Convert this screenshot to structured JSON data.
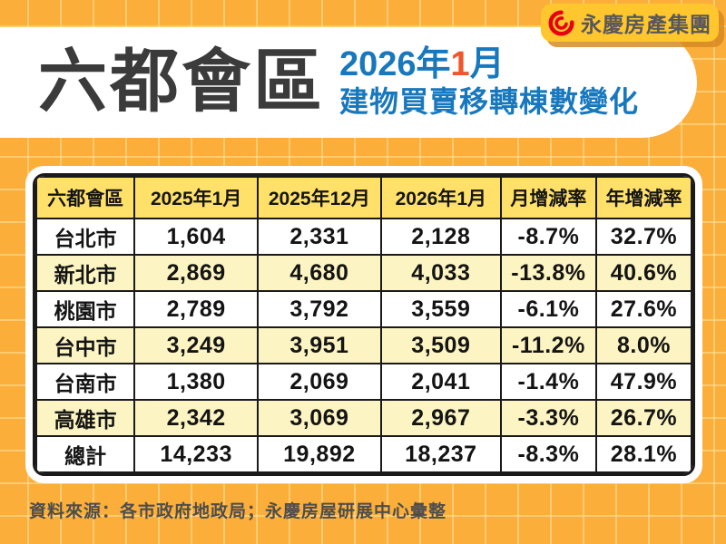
{
  "logo": {
    "company_name": "永慶房產集團",
    "badge_color": "#FFC62E",
    "icon_color": "#E60012",
    "text_color": "#58585A"
  },
  "header": {
    "title": "六都會區",
    "subtitle_line1": {
      "year_part": "2026年",
      "highlight": "1",
      "month_part": "月"
    },
    "subtitle_line2": "建物買賣移轉棟數變化",
    "title_color": "#3B3B3B",
    "subtitle_color": "#1878BE",
    "highlight_color": "#F1552A"
  },
  "chart_data": {
    "type": "table",
    "title": "六都會區 2026年1月 建物買賣移轉棟數變化",
    "columns": [
      "六都會區",
      "2025年1月",
      "2025年12月",
      "2026年1月",
      "月增減率",
      "年增減率"
    ],
    "rows": [
      [
        "台北市",
        "1,604",
        "2,331",
        "2,128",
        "-8.7%",
        "32.7%"
      ],
      [
        "新北市",
        "2,869",
        "4,680",
        "4,033",
        "-13.8%",
        "40.6%"
      ],
      [
        "桃園市",
        "2,789",
        "3,792",
        "3,559",
        "-6.1%",
        "27.6%"
      ],
      [
        "台中市",
        "3,249",
        "3,951",
        "3,509",
        "-11.2%",
        "8.0%"
      ],
      [
        "台南市",
        "1,380",
        "2,069",
        "2,041",
        "-1.4%",
        "47.9%"
      ],
      [
        "高雄市",
        "2,342",
        "3,069",
        "2,967",
        "-3.3%",
        "26.7%"
      ],
      [
        "總計",
        "14,233",
        "19,892",
        "18,237",
        "-8.3%",
        "28.1%"
      ]
    ],
    "style": {
      "header_bg": "#FFE069",
      "row_bg": "#FFFFFF",
      "row_alt_bg": "#FCF4C2",
      "border_color": "#1A1A1A"
    }
  },
  "footer": {
    "source": "資料來源：各市政府地政局；永慶房屋研展中心彙整"
  },
  "page": {
    "background_color": "#FBAE3A",
    "grid_line_color": "#FDC966"
  }
}
